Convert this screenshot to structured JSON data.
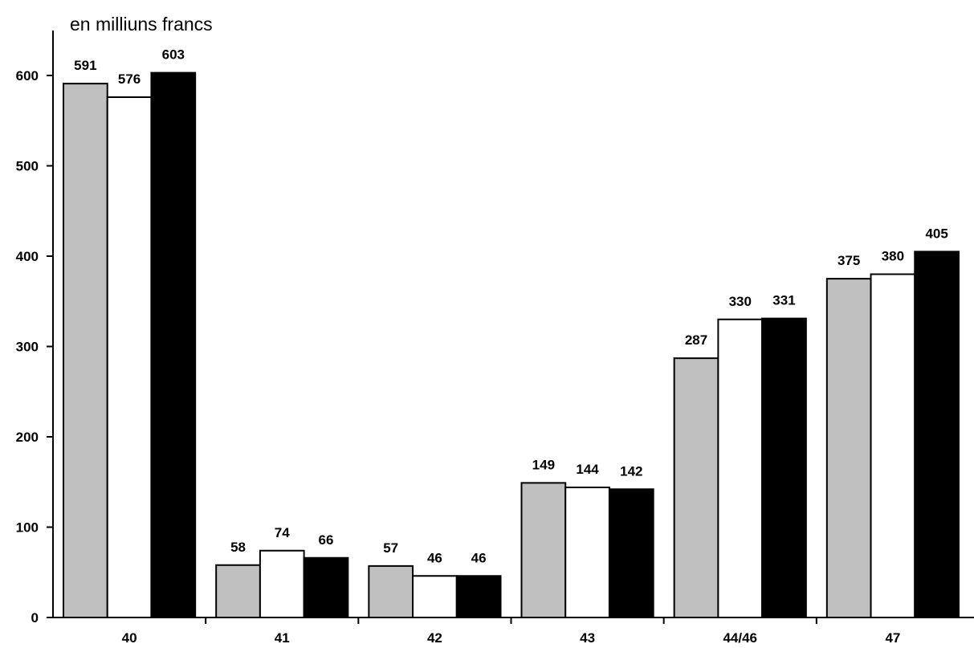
{
  "chart_data": {
    "type": "bar",
    "title": "",
    "unit_label": "en milliuns francs",
    "xlabel": "",
    "ylabel": "",
    "categories": [
      "40",
      "41",
      "42",
      "43",
      "44/46",
      "47"
    ],
    "series": [
      {
        "color": "#c0c0c0",
        "values": [
          591,
          58,
          57,
          149,
          287,
          375
        ]
      },
      {
        "color": "#ffffff",
        "values": [
          576,
          74,
          46,
          144,
          330,
          380
        ]
      },
      {
        "color": "#000000",
        "values": [
          603,
          66,
          46,
          142,
          331,
          405
        ]
      }
    ],
    "ylim": [
      0,
      600
    ],
    "yticks": [
      "0",
      "100",
      "200",
      "300",
      "400",
      "500",
      "600"
    ],
    "grid": false,
    "legend": false,
    "data_labels": true
  }
}
